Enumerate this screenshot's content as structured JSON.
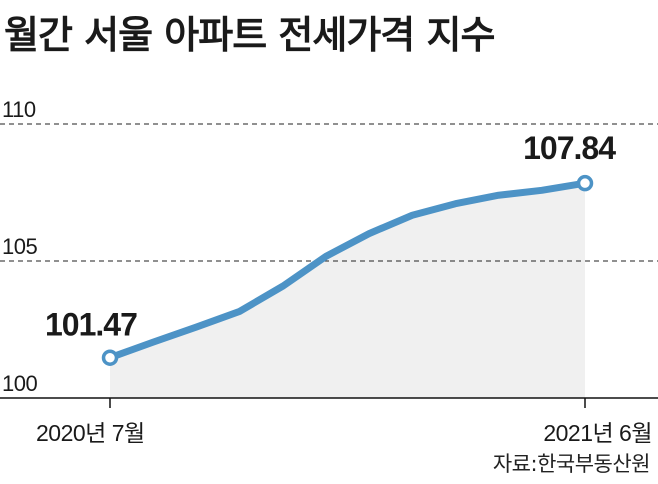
{
  "title": "월간 서울 아파트 전세가격 지수",
  "source": "자료:한국부동산원",
  "colors": {
    "line": "#4d93c6",
    "area": "#f0f0f0",
    "grid": "#222222",
    "axis": "#111111"
  },
  "chart_data": {
    "type": "line",
    "title": "월간 서울 아파트 전세가격 지수",
    "xlabel": "",
    "ylabel": "",
    "ylim": [
      100,
      110
    ],
    "yticks": [
      110,
      105,
      100
    ],
    "x_tick_labels": [
      "2020년 7월",
      "2021년 6월"
    ],
    "x": [
      "2020-07",
      "2020-08",
      "2020-09",
      "2020-10",
      "2020-11",
      "2020-12",
      "2021-01",
      "2021-02",
      "2021-03",
      "2021-04",
      "2021-05",
      "2021-06"
    ],
    "values": [
      101.47,
      102.04,
      102.59,
      103.16,
      104.08,
      105.17,
      106.0,
      106.67,
      107.09,
      107.4,
      107.58,
      107.84
    ],
    "annotations": [
      {
        "label": "101.47",
        "index": 0
      },
      {
        "label": "107.84",
        "index": 11
      }
    ],
    "grid": true,
    "area_fill": true
  }
}
